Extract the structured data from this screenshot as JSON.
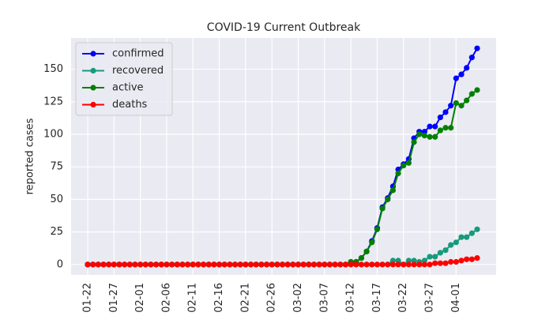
{
  "chart_data": {
    "type": "line",
    "title": "COVID-19 Current Outbreak",
    "y_label": "reported cases",
    "categories": [
      "01-22",
      null,
      null,
      null,
      null,
      "01-27",
      null,
      null,
      null,
      null,
      "02-01",
      null,
      null,
      null,
      null,
      "02-06",
      null,
      null,
      null,
      null,
      "02-11",
      null,
      null,
      null,
      null,
      "02-16",
      null,
      null,
      null,
      null,
      "02-21",
      null,
      null,
      null,
      null,
      "02-26",
      null,
      null,
      null,
      null,
      "03-02",
      null,
      null,
      null,
      null,
      "03-07",
      null,
      null,
      null,
      null,
      "03-12",
      null,
      null,
      null,
      null,
      "03-17",
      null,
      null,
      null,
      null,
      "03-22",
      null,
      null,
      null,
      null,
      "03-27",
      null,
      null,
      null,
      null,
      "04-01",
      null,
      null,
      null,
      null
    ],
    "series": [
      {
        "name": "confirmed",
        "color": "#0000ff",
        "values": [
          0,
          0,
          0,
          0,
          0,
          0,
          0,
          0,
          0,
          0,
          0,
          0,
          0,
          0,
          0,
          0,
          0,
          0,
          0,
          0,
          0,
          0,
          0,
          0,
          0,
          0,
          0,
          0,
          0,
          0,
          0,
          0,
          0,
          0,
          0,
          0,
          0,
          0,
          0,
          0,
          0,
          0,
          0,
          0,
          0,
          0,
          0,
          0,
          0,
          0,
          2,
          2,
          5,
          10,
          18,
          28,
          44,
          51,
          60,
          73,
          77,
          81,
          97,
          102,
          102,
          106,
          106,
          113,
          117,
          122,
          143,
          146,
          151,
          159,
          166
        ]
      },
      {
        "name": "recovered",
        "color": "#169a7c",
        "values": [
          0,
          0,
          0,
          0,
          0,
          0,
          0,
          0,
          0,
          0,
          0,
          0,
          0,
          0,
          0,
          0,
          0,
          0,
          0,
          0,
          0,
          0,
          0,
          0,
          0,
          0,
          0,
          0,
          0,
          0,
          0,
          0,
          0,
          0,
          0,
          0,
          0,
          0,
          0,
          0,
          0,
          0,
          0,
          0,
          0,
          0,
          0,
          0,
          0,
          0,
          0,
          0,
          0,
          0,
          0,
          0,
          0,
          0,
          3,
          3,
          0,
          3,
          3,
          2,
          3,
          6,
          6,
          9,
          11,
          15,
          17,
          21,
          21,
          24,
          27
        ]
      },
      {
        "name": "active",
        "color": "#008000",
        "values": [
          0,
          0,
          0,
          0,
          0,
          0,
          0,
          0,
          0,
          0,
          0,
          0,
          0,
          0,
          0,
          0,
          0,
          0,
          0,
          0,
          0,
          0,
          0,
          0,
          0,
          0,
          0,
          0,
          0,
          0,
          0,
          0,
          0,
          0,
          0,
          0,
          0,
          0,
          0,
          0,
          0,
          0,
          0,
          0,
          0,
          0,
          0,
          0,
          0,
          0,
          2,
          2,
          5,
          10,
          17,
          27,
          43,
          50,
          57,
          70,
          76,
          78,
          94,
          100,
          99,
          98,
          98,
          103,
          105,
          105,
          124,
          122,
          126,
          131,
          134
        ]
      },
      {
        "name": "deaths",
        "color": "#ff0000",
        "values": [
          0,
          0,
          0,
          0,
          0,
          0,
          0,
          0,
          0,
          0,
          0,
          0,
          0,
          0,
          0,
          0,
          0,
          0,
          0,
          0,
          0,
          0,
          0,
          0,
          0,
          0,
          0,
          0,
          0,
          0,
          0,
          0,
          0,
          0,
          0,
          0,
          0,
          0,
          0,
          0,
          0,
          0,
          0,
          0,
          0,
          0,
          0,
          0,
          0,
          0,
          0,
          0,
          0,
          0,
          0,
          0,
          0,
          0,
          0,
          0,
          0,
          0,
          0,
          0,
          0,
          0,
          1,
          1,
          1,
          2,
          2,
          3,
          4,
          4,
          5
        ]
      }
    ],
    "ylim": [
      -8,
      174
    ],
    "yticks": [
      0,
      25,
      50,
      75,
      100,
      125,
      150
    ],
    "grid": true,
    "legend": "upper left"
  }
}
